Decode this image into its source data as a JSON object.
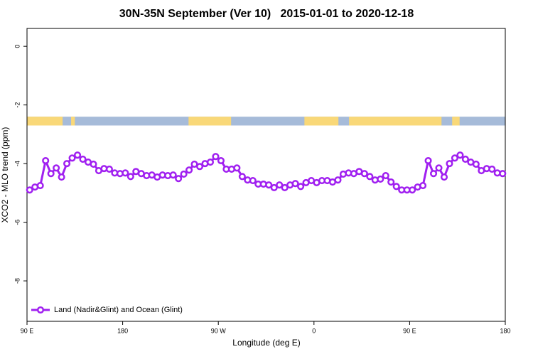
{
  "chart_data": {
    "type": "line",
    "title": "30N-35N September (Ver 10)   2015-01-01 to 2020-12-18",
    "xlabel": "Longitude (deg E)",
    "ylabel": "XCO2 - MLO trend (ppm)",
    "xlim": [
      90,
      540
    ],
    "xticks": [
      {
        "value": 90,
        "label": "90 E"
      },
      180,
      {
        "value": 270,
        "label": "90 W"
      },
      {
        "value": 360,
        "label": "0"
      },
      {
        "value": 450,
        "label": "90 E"
      },
      180
    ],
    "ylim": [
      -9.38,
      0.61
    ],
    "yticks": [
      0,
      -2,
      -4,
      -6,
      -8
    ],
    "legend": "bottom-left",
    "land_mask": {
      "ylim": [
        -2.4,
        -2.7
      ],
      "land_color": "#f9d878",
      "ocean_color": "#a6bbd9",
      "land": [
        [
          90,
          123.5
        ],
        [
          131.5,
          135
        ],
        [
          242,
          282
        ],
        [
          351,
          383
        ],
        [
          393,
          480
        ],
        [
          490,
          497
        ]
      ]
    },
    "x": [
      92.5,
      97.5,
      102.5,
      107.5,
      112.5,
      117.5,
      122.5,
      127.5,
      132.5,
      137.5,
      142.5,
      147.5,
      152.5,
      157.5,
      162.5,
      167.5,
      172.5,
      177.5,
      182.5,
      187.5,
      192.5,
      197.5,
      202.5,
      207.5,
      212.5,
      217.5,
      222.5,
      227.5,
      232.5,
      237.5,
      242.5,
      247.5,
      252.5,
      257.5,
      262.5,
      267.5,
      272.5,
      277.5,
      282.5,
      287.5,
      292.5,
      297.5,
      302.5,
      307.5,
      312.5,
      317.5,
      322.5,
      327.5,
      332.5,
      337.5,
      342.5,
      347.5,
      352.5,
      357.5,
      362.5,
      367.5,
      372.5,
      377.5,
      382.5,
      387.5,
      392.5,
      397.5,
      402.5,
      407.5,
      412.5,
      417.5,
      422.5,
      427.5,
      432.5,
      437.5,
      442.5,
      447.5,
      452.5,
      457.5,
      462.5,
      467.5,
      472.5,
      477.5,
      482.5,
      487.5,
      492.5,
      497.5,
      502.5,
      507.5,
      512.5,
      517.5,
      522.5,
      527.5,
      532.5,
      537.5
    ],
    "series": [
      {
        "name": "Land (Nadir&Glint) and Ocean (Glint)",
        "color": "#a020f0",
        "values": [
          -4.9,
          -4.8,
          -4.75,
          -3.9,
          -4.34,
          -4.15,
          -4.46,
          -4.0,
          -3.81,
          -3.71,
          -3.85,
          -3.95,
          -4.02,
          -4.24,
          -4.17,
          -4.19,
          -4.32,
          -4.34,
          -4.32,
          -4.44,
          -4.27,
          -4.34,
          -4.41,
          -4.39,
          -4.46,
          -4.39,
          -4.41,
          -4.39,
          -4.51,
          -4.36,
          -4.22,
          -4.02,
          -4.1,
          -4.0,
          -3.95,
          -3.76,
          -3.9,
          -4.19,
          -4.19,
          -4.15,
          -4.44,
          -4.56,
          -4.58,
          -4.7,
          -4.7,
          -4.73,
          -4.82,
          -4.73,
          -4.82,
          -4.73,
          -4.68,
          -4.78,
          -4.65,
          -4.58,
          -4.65,
          -4.58,
          -4.58,
          -4.63,
          -4.56,
          -4.36,
          -4.32,
          -4.34,
          -4.27,
          -4.34,
          -4.44,
          -4.56,
          -4.53,
          -4.41,
          -4.63,
          -4.78,
          -4.9,
          -4.9,
          -4.9,
          -4.8,
          -4.75,
          -3.9,
          -4.34,
          -4.15,
          -4.46,
          -4.0,
          -3.81,
          -3.71,
          -3.85,
          -3.95,
          -4.02,
          -4.24,
          -4.17,
          -4.19,
          -4.32,
          -4.34
        ]
      }
    ]
  }
}
